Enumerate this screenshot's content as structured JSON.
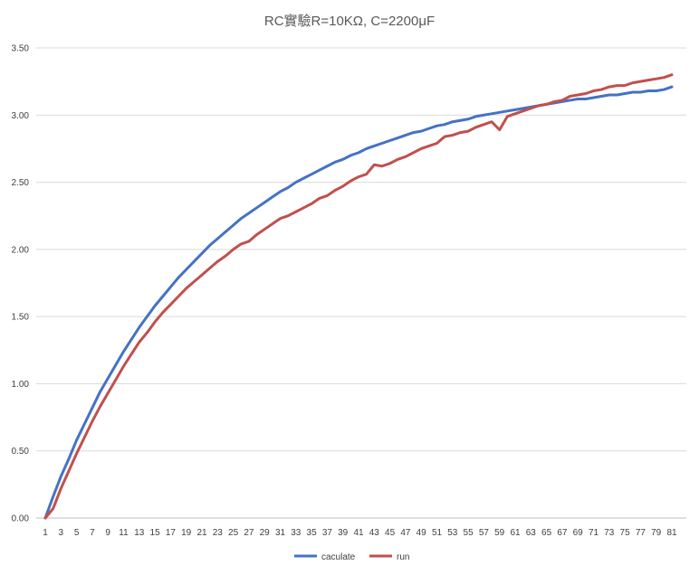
{
  "chart_data": {
    "type": "line",
    "title": "RC實驗R=10KΩ, C=2200μF",
    "xlabel": "",
    "ylabel": "",
    "x": [
      1,
      2,
      3,
      4,
      5,
      6,
      7,
      8,
      9,
      10,
      11,
      12,
      13,
      14,
      15,
      16,
      17,
      18,
      19,
      20,
      21,
      22,
      23,
      24,
      25,
      26,
      27,
      28,
      29,
      30,
      31,
      32,
      33,
      34,
      35,
      36,
      37,
      38,
      39,
      40,
      41,
      42,
      43,
      44,
      45,
      46,
      47,
      48,
      49,
      50,
      51,
      52,
      53,
      54,
      55,
      56,
      57,
      58,
      59,
      60,
      61,
      62,
      63,
      64,
      65,
      66,
      67,
      68,
      69,
      70,
      71,
      72,
      73,
      74,
      75,
      76,
      77,
      78,
      79,
      80,
      81
    ],
    "x_tick_labels": [
      "1",
      "3",
      "5",
      "7",
      "9",
      "11",
      "13",
      "15",
      "17",
      "19",
      "21",
      "23",
      "25",
      "27",
      "29",
      "31",
      "33",
      "35",
      "37",
      "39",
      "41",
      "43",
      "45",
      "47",
      "49",
      "51",
      "53",
      "55",
      "57",
      "59",
      "61",
      "63",
      "65",
      "67",
      "69",
      "71",
      "73",
      "75",
      "77",
      "79",
      "81"
    ],
    "y_tick_labels": [
      "0.00",
      "0.50",
      "1.00",
      "1.50",
      "2.00",
      "2.50",
      "3.00",
      "3.50"
    ],
    "ylim": [
      0,
      3.5
    ],
    "grid": true,
    "legend_position": "bottom",
    "series": [
      {
        "name": "caculate",
        "color": "#4472c4",
        "values": [
          0.0,
          0.16,
          0.31,
          0.44,
          0.58,
          0.7,
          0.82,
          0.94,
          1.04,
          1.14,
          1.24,
          1.33,
          1.42,
          1.5,
          1.58,
          1.65,
          1.72,
          1.79,
          1.85,
          1.91,
          1.97,
          2.03,
          2.08,
          2.13,
          2.18,
          2.23,
          2.27,
          2.31,
          2.35,
          2.39,
          2.43,
          2.46,
          2.5,
          2.53,
          2.56,
          2.59,
          2.62,
          2.65,
          2.67,
          2.7,
          2.72,
          2.75,
          2.77,
          2.79,
          2.81,
          2.83,
          2.85,
          2.87,
          2.88,
          2.9,
          2.92,
          2.93,
          2.95,
          2.96,
          2.97,
          2.99,
          3.0,
          3.01,
          3.02,
          3.03,
          3.04,
          3.05,
          3.06,
          3.07,
          3.08,
          3.09,
          3.1,
          3.11,
          3.12,
          3.12,
          3.13,
          3.14,
          3.15,
          3.15,
          3.16,
          3.17,
          3.17,
          3.18,
          3.18,
          3.19,
          3.21
        ]
      },
      {
        "name": "run",
        "color": "#c0504d",
        "values": [
          0.0,
          0.07,
          0.22,
          0.35,
          0.48,
          0.6,
          0.72,
          0.83,
          0.93,
          1.03,
          1.13,
          1.22,
          1.31,
          1.38,
          1.46,
          1.53,
          1.59,
          1.65,
          1.71,
          1.76,
          1.81,
          1.86,
          1.91,
          1.95,
          2.0,
          2.04,
          2.06,
          2.11,
          2.15,
          2.19,
          2.23,
          2.25,
          2.28,
          2.31,
          2.34,
          2.38,
          2.4,
          2.44,
          2.47,
          2.51,
          2.54,
          2.56,
          2.63,
          2.62,
          2.64,
          2.67,
          2.69,
          2.72,
          2.75,
          2.77,
          2.79,
          2.84,
          2.85,
          2.87,
          2.88,
          2.91,
          2.93,
          2.95,
          2.89,
          2.99,
          3.01,
          3.03,
          3.05,
          3.07,
          3.08,
          3.1,
          3.11,
          3.14,
          3.15,
          3.16,
          3.18,
          3.19,
          3.21,
          3.22,
          3.22,
          3.24,
          3.25,
          3.26,
          3.27,
          3.28,
          3.3
        ]
      }
    ]
  }
}
